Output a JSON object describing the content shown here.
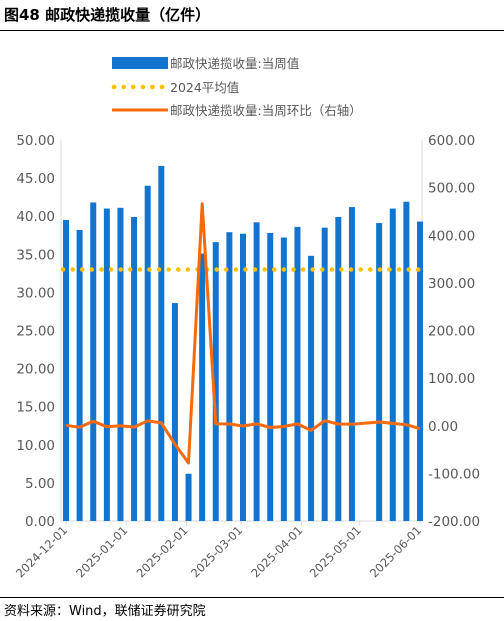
{
  "figure": {
    "title": "图48 邮政快递揽收量（亿件）",
    "source": "资料来源：Wind，联储证券研究院"
  },
  "colors": {
    "bars": "#1274CF",
    "average_line": "#FFC000",
    "mom_line": "#FA6A0A",
    "axis_text": "#595959",
    "axis_line": "#D9D9D9"
  },
  "chart_data": {
    "type": "bar",
    "legend": [
      "邮政快递揽收量:当周值",
      "2024平均值",
      "邮政快递揽收量:当周环比（右轴）"
    ],
    "legend_position": "top",
    "grid": false,
    "xlabel": "",
    "ylabel": "",
    "x_tick_labels": [
      "2024-12-01",
      "2025-01-01",
      "2025-02-01",
      "2025-03-01",
      "2025-04-01",
      "2025-05-01",
      "2025-06-01"
    ],
    "ylim_left": [
      0,
      50
    ],
    "ylim_right": [
      -200,
      600
    ],
    "y_ticks_left": [
      "0.00",
      "5.00",
      "10.00",
      "15.00",
      "20.00",
      "25.00",
      "30.00",
      "35.00",
      "40.00",
      "45.00",
      "50.00"
    ],
    "y_ticks_right": [
      "-200.00",
      "-100.00",
      "0.00",
      "100.00",
      "200.00",
      "300.00",
      "400.00",
      "500.00",
      "600.00"
    ],
    "weeks": [
      "2024-12-01",
      "2024-12-08",
      "2024-12-15",
      "2024-12-22",
      "2024-12-29",
      "2025-01-05",
      "2025-01-12",
      "2025-01-19",
      "2025-01-26",
      "2025-02-02",
      "2025-02-09",
      "2025-02-16",
      "2025-02-23",
      "2025-03-02",
      "2025-03-09",
      "2025-03-16",
      "2025-03-23",
      "2025-03-30",
      "2025-04-06",
      "2025-04-13",
      "2025-04-20",
      "2025-04-27",
      "2025-05-04",
      "2025-05-11",
      "2025-05-18",
      "2025-05-25",
      "2025-06-01"
    ],
    "series": [
      {
        "name": "邮政快递揽收量:当周值",
        "type": "bar",
        "axis": "left",
        "values": [
          39.5,
          38.2,
          41.8,
          41.0,
          41.1,
          39.9,
          44.0,
          46.6,
          28.6,
          6.2,
          35.1,
          36.6,
          37.9,
          37.7,
          39.2,
          37.8,
          37.2,
          38.6,
          34.8,
          38.5,
          39.9,
          41.2,
          null,
          39.1,
          41.0,
          41.9,
          39.3
        ]
      },
      {
        "name": "2024平均值",
        "type": "line",
        "axis": "left",
        "values": [
          33.0,
          33.0,
          33.0,
          33.0,
          33.0,
          33.0,
          33.0,
          33.0,
          33.0,
          33.0,
          33.0,
          33.0,
          33.0,
          33.0,
          33.0,
          33.0,
          33.0,
          33.0,
          33.0,
          33.0,
          33.0,
          33.0,
          33.0,
          33.0,
          33.0,
          33.0,
          33.0
        ]
      },
      {
        "name": "邮政快递揽收量:当周环比（右轴）",
        "type": "line",
        "axis": "right",
        "values": [
          1.0,
          -3.3,
          9.4,
          -1.9,
          0.2,
          -2.9,
          10.3,
          5.9,
          -38.6,
          -78.3,
          466.1,
          4.3,
          3.6,
          -0.5,
          4.0,
          -3.6,
          -1.6,
          3.8,
          -9.8,
          10.6,
          3.6,
          3.3,
          null,
          7.8,
          4.9,
          2.2,
          -6.2
        ]
      }
    ]
  }
}
